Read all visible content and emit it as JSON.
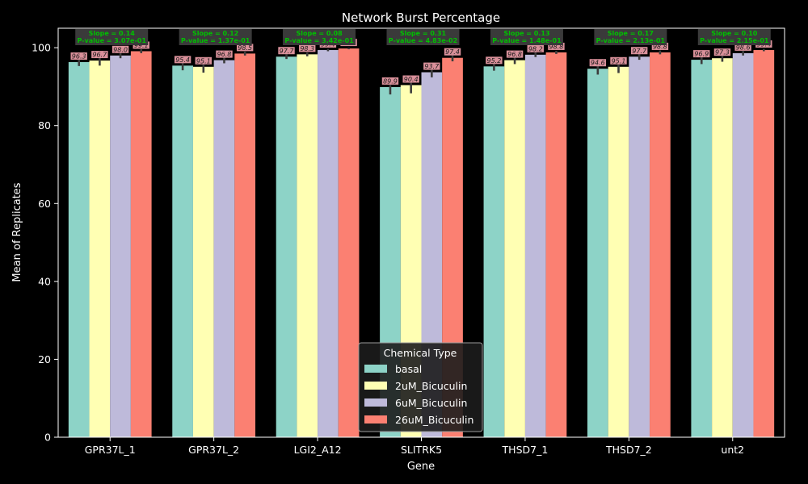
{
  "chart_data": {
    "type": "bar",
    "title": "Network Burst Percentage",
    "xlabel": "Gene",
    "ylabel": "Mean of Replicates",
    "ylim": [
      0,
      105
    ],
    "yticks": [
      0,
      20,
      40,
      60,
      80,
      100
    ],
    "categories": [
      "GPR37L_1",
      "GPR37L_2",
      "LGI2_A12",
      "SLITRK5",
      "THSD7_1",
      "THSD7_2",
      "unt2"
    ],
    "series": [
      {
        "name": "basal",
        "color": "#8dd3c7",
        "values": [
          96.3,
          95.4,
          97.7,
          89.9,
          95.2,
          94.6,
          96.9
        ],
        "err": [
          1.0,
          1.2,
          0.6,
          1.9,
          1.1,
          1.5,
          1.1
        ]
      },
      {
        "name": "2uM_Bicuculin",
        "color": "#ffffb3",
        "values": [
          96.7,
          95.1,
          98.3,
          90.4,
          96.8,
          95.1,
          97.3
        ],
        "err": [
          1.3,
          1.5,
          0.5,
          2.1,
          1.0,
          1.6,
          0.9
        ]
      },
      {
        "name": "6uM_Bicuculin",
        "color": "#bebada",
        "values": [
          98.0,
          96.8,
          99.4,
          93.7,
          98.2,
          97.7,
          98.6
        ],
        "err": [
          0.7,
          0.8,
          0.3,
          1.3,
          0.6,
          0.8,
          0.6
        ]
      },
      {
        "name": "26uM_Bicuculin",
        "color": "#fb8072",
        "values": [
          99.1,
          98.5,
          99.8,
          97.4,
          98.8,
          98.8,
          99.4
        ],
        "err": [
          0.5,
          0.5,
          0.2,
          0.9,
          0.4,
          0.5,
          0.3
        ]
      }
    ],
    "annotations": [
      {
        "line1": "Slope = 0.14",
        "line2": "P-value = 3.07e-01"
      },
      {
        "line1": "Slope = 0.12",
        "line2": "P-value = 1.37e-01"
      },
      {
        "line1": "Slope = 0.08",
        "line2": "P-value = 3.42e-01"
      },
      {
        "line1": "Slope = 0.31",
        "line2": "P-value = 4.83e-02"
      },
      {
        "line1": "Slope = 0.13",
        "line2": "P-value = 1.48e-01"
      },
      {
        "line1": "Slope = 0.17",
        "line2": "P-value = 2.13e-01"
      },
      {
        "line1": "Slope = 0.10",
        "line2": "P-value = 2.15e-01"
      }
    ],
    "legend": {
      "title": "Chemical Type",
      "position": "lower center"
    },
    "grid": false
  }
}
